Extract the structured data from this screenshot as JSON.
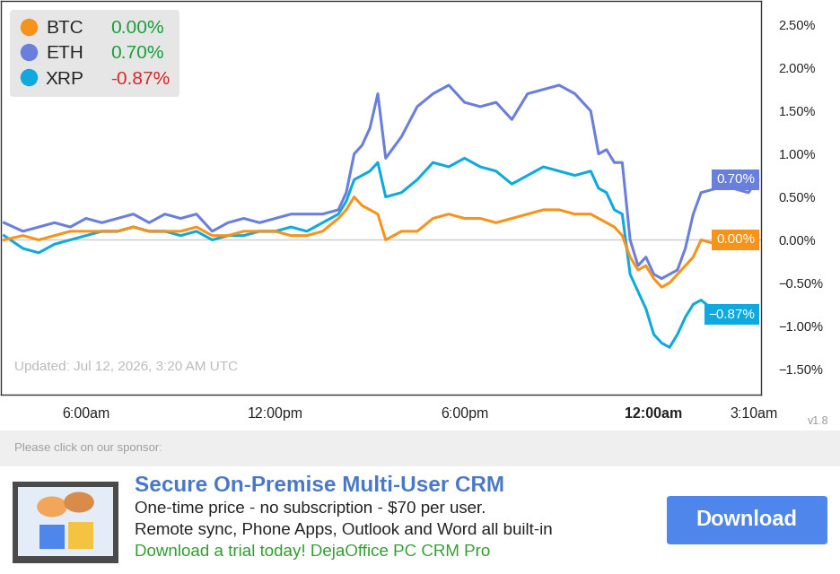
{
  "chart_data": {
    "type": "line",
    "x": [
      3.4,
      4,
      4.5,
      5,
      5.5,
      6,
      6.5,
      7,
      7.5,
      8,
      8.5,
      9,
      9.5,
      10,
      10.5,
      11,
      11.5,
      12,
      12.5,
      13,
      13.5,
      14,
      14.25,
      14.5,
      14.75,
      15,
      15.25,
      15.5,
      16,
      16.5,
      17,
      17.5,
      18,
      18.5,
      19,
      19.5,
      20,
      20.5,
      21,
      21.5,
      22,
      22.25,
      22.5,
      22.75,
      23,
      23.25,
      23.5,
      23.75,
      24,
      24.25,
      24.5,
      24.75,
      25,
      25.25,
      25.5,
      26,
      26.5,
      27,
      27.3
    ],
    "xlim": [
      3.3,
      27.4
    ],
    "xticks": [
      {
        "value": 6,
        "label": "6:00am"
      },
      {
        "value": 12,
        "label": "12:00pm"
      },
      {
        "value": 18,
        "label": "6:00pm"
      },
      {
        "value": 24,
        "label": "12:00am"
      },
      {
        "value": 27.17,
        "label": "3:10am"
      }
    ],
    "ylim": [
      -1.8,
      2.78
    ],
    "yticks": [
      {
        "value": -1.5,
        "label": "−1.50%"
      },
      {
        "value": -1.0,
        "label": "−1.00%"
      },
      {
        "value": -0.5,
        "label": "−0.50%"
      },
      {
        "value": 0,
        "label": "0.00%"
      },
      {
        "value": 0.5,
        "label": "0.50%"
      },
      {
        "value": 1.0,
        "label": "1.00%"
      },
      {
        "value": 1.5,
        "label": "1.50%"
      },
      {
        "value": 2.0,
        "label": "2.00%"
      },
      {
        "value": 2.5,
        "label": "2.50%"
      }
    ],
    "grid": false,
    "legend": "upper left",
    "annotations": [
      "Updated: Jul 12, 2026, 3:20 AM UTC"
    ],
    "series": [
      {
        "name": "BTC",
        "color": "#f7931a",
        "change": 0.0,
        "change_label": "0.00%",
        "tag_label": "0.00%",
        "values": [
          0.0,
          0.05,
          0.0,
          0.05,
          0.1,
          0.1,
          0.1,
          0.1,
          0.15,
          0.1,
          0.1,
          0.1,
          0.15,
          0.05,
          0.05,
          0.1,
          0.1,
          0.1,
          0.05,
          0.05,
          0.1,
          0.25,
          0.35,
          0.5,
          0.4,
          0.35,
          0.3,
          0.0,
          0.1,
          0.1,
          0.25,
          0.3,
          0.25,
          0.25,
          0.2,
          0.25,
          0.3,
          0.35,
          0.35,
          0.3,
          0.3,
          0.25,
          0.2,
          0.15,
          0.05,
          -0.2,
          -0.35,
          -0.3,
          -0.45,
          -0.55,
          -0.5,
          -0.4,
          -0.3,
          -0.2,
          0.0,
          -0.05,
          -0.05,
          -0.1,
          0.0
        ]
      },
      {
        "name": "ETH",
        "color": "#6a7fdb",
        "change": 0.7,
        "change_label": "0.70%",
        "tag_label": "0.70%",
        "values": [
          0.2,
          0.1,
          0.15,
          0.2,
          0.15,
          0.25,
          0.2,
          0.25,
          0.3,
          0.2,
          0.3,
          0.25,
          0.3,
          0.1,
          0.2,
          0.25,
          0.2,
          0.25,
          0.3,
          0.3,
          0.3,
          0.35,
          0.55,
          1.0,
          1.1,
          1.3,
          1.7,
          0.95,
          1.2,
          1.55,
          1.7,
          1.8,
          1.6,
          1.55,
          1.6,
          1.4,
          1.7,
          1.75,
          1.8,
          1.7,
          1.5,
          1.0,
          1.05,
          0.9,
          0.9,
          0.0,
          -0.3,
          -0.2,
          -0.4,
          -0.45,
          -0.4,
          -0.35,
          -0.1,
          0.3,
          0.55,
          0.6,
          0.6,
          0.55,
          0.7
        ]
      },
      {
        "name": "XRP",
        "color": "#10a9dd",
        "change": -0.87,
        "change_label": "-0.87%",
        "tag_label": "−0.87%",
        "values": [
          0.05,
          -0.1,
          -0.15,
          -0.05,
          0.0,
          0.05,
          0.1,
          0.1,
          0.15,
          0.1,
          0.1,
          0.05,
          0.1,
          0.0,
          0.05,
          0.05,
          0.1,
          0.1,
          0.15,
          0.1,
          0.2,
          0.3,
          0.45,
          0.7,
          0.75,
          0.8,
          0.9,
          0.5,
          0.55,
          0.7,
          0.9,
          0.85,
          0.95,
          0.85,
          0.8,
          0.65,
          0.75,
          0.85,
          0.8,
          0.75,
          0.8,
          0.6,
          0.55,
          0.35,
          0.3,
          -0.4,
          -0.6,
          -0.8,
          -1.1,
          -1.2,
          -1.25,
          -1.1,
          -0.9,
          -0.75,
          -0.7,
          -0.85,
          -0.9,
          -0.88,
          -0.87
        ]
      }
    ]
  },
  "footer": {
    "version": "v1.8",
    "sponsor_prompt": "Please click on our sponsor:",
    "ad": {
      "title": "Secure On-Premise Multi-User CRM",
      "lines": [
        "One-time price - no subscription - $70 per user.",
        "Remote sync, Phone Apps, Outlook and Word all built-in",
        "Download a trial today! DejaOffice PC CRM Pro"
      ],
      "button": "Download"
    }
  }
}
